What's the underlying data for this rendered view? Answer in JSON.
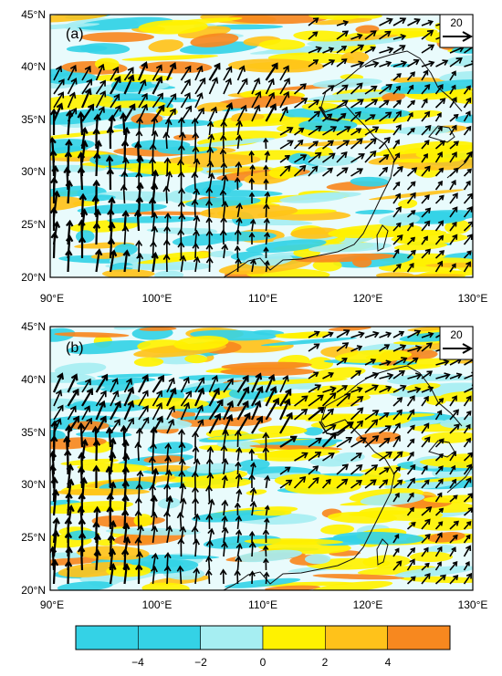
{
  "panels": [
    {
      "label": "(a)",
      "reference_vector": {
        "value": "20"
      },
      "lat_ticks": [
        "45°N",
        "40°N",
        "35°N",
        "30°N",
        "25°N",
        "20°N"
      ],
      "lon_ticks": [
        "90°E",
        "100°E",
        "110°E",
        "120°E",
        "130°E"
      ],
      "bounds": {
        "lon": [
          90,
          130
        ],
        "lat": [
          20,
          45
        ]
      }
    },
    {
      "label": "(b)",
      "reference_vector": {
        "value": "20"
      },
      "lat_ticks": [
        "45°N",
        "40°N",
        "35°N",
        "30°N",
        "25°N",
        "20°N"
      ],
      "lon_ticks": [
        "90°E",
        "100°E",
        "110°E",
        "120°E",
        "130°E"
      ],
      "bounds": {
        "lon": [
          90,
          130
        ],
        "lat": [
          20,
          45
        ]
      }
    }
  ],
  "colorbar": {
    "labels": [
      "−4",
      "−2",
      "0",
      "2",
      "4"
    ],
    "colors": [
      "#34d2e6",
      "#34d2e6",
      "#a6eef2",
      "#fff200",
      "#ffc21a",
      "#f7881f"
    ]
  },
  "colors": {
    "cyan": "#34d2e6",
    "light_cyan": "#a6eef2",
    "pale": "#e9fbfc",
    "yellow": "#fff200",
    "gold": "#ffc21a",
    "orange": "#f7881f",
    "vector": "#000000",
    "coast": "#111111"
  }
}
